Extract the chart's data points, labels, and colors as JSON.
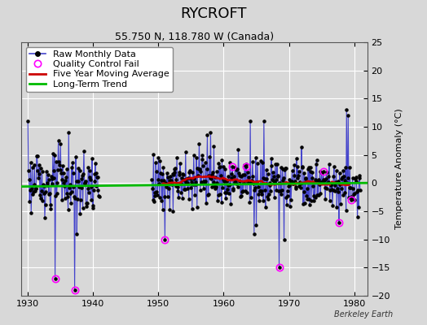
{
  "title": "RYCROFT",
  "subtitle": "55.750 N, 118.780 W (Canada)",
  "ylabel": "Temperature Anomaly (°C)",
  "watermark": "Berkeley Earth",
  "xlim": [
    1929.0,
    1982.0
  ],
  "ylim": [
    -20,
    25
  ],
  "yticks": [
    -20,
    -15,
    -10,
    -5,
    0,
    5,
    10,
    15,
    20,
    25
  ],
  "xticks": [
    1930,
    1940,
    1950,
    1960,
    1970,
    1980
  ],
  "bg_color": "#d8d8d8",
  "plot_bg_color": "#d8d8d8",
  "line_color": "#4444cc",
  "dot_color": "#000000",
  "moving_avg_color": "#cc0000",
  "trend_color": "#00bb00",
  "qc_fail_color": "#ff00ff",
  "legend_fontsize": 8,
  "title_fontsize": 13,
  "subtitle_fontsize": 9,
  "seed": 123,
  "gap_start": 1941,
  "gap_end": 1948,
  "period1_start": 1930,
  "period1_end": 1940,
  "period2_start": 1949,
  "period2_end": 1980
}
